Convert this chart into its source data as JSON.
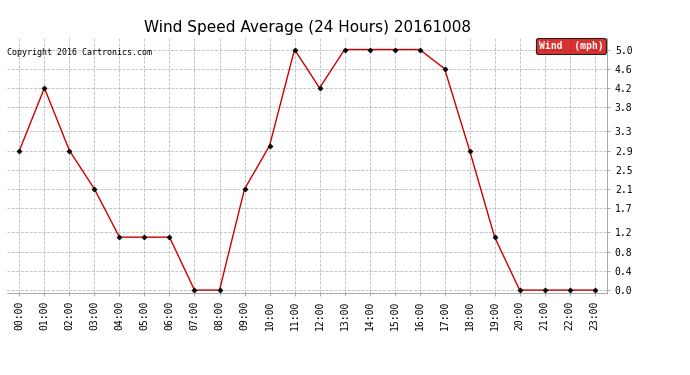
{
  "title": "Wind Speed Average (24 Hours) 20161008",
  "copyright": "Copyright 2016 Cartronics.com",
  "legend_label": "Wind  (mph)",
  "x_labels": [
    "00:00",
    "01:00",
    "02:00",
    "03:00",
    "04:00",
    "05:00",
    "06:00",
    "07:00",
    "08:00",
    "09:00",
    "10:00",
    "11:00",
    "12:00",
    "13:00",
    "14:00",
    "15:00",
    "16:00",
    "17:00",
    "18:00",
    "19:00",
    "20:00",
    "21:00",
    "22:00",
    "23:00"
  ],
  "y_values": [
    2.9,
    4.2,
    2.9,
    2.1,
    1.1,
    1.1,
    1.1,
    0.0,
    0.0,
    2.1,
    3.0,
    5.0,
    4.2,
    5.0,
    5.0,
    5.0,
    5.0,
    4.6,
    2.9,
    1.1,
    0.0,
    0.0,
    0.0,
    0.0
  ],
  "y_ticks": [
    0.0,
    0.4,
    0.8,
    1.2,
    1.7,
    2.1,
    2.5,
    2.9,
    3.3,
    3.8,
    4.2,
    4.6,
    5.0
  ],
  "ylim": [
    -0.05,
    5.25
  ],
  "line_color": "#cc0000",
  "marker_color": "#000000",
  "background_color": "#ffffff",
  "grid_color": "#aaaaaa",
  "title_fontsize": 11,
  "copyright_fontsize": 6,
  "tick_fontsize": 7,
  "legend_bg": "#cc0000",
  "legend_fg": "#ffffff",
  "legend_fontsize": 7
}
